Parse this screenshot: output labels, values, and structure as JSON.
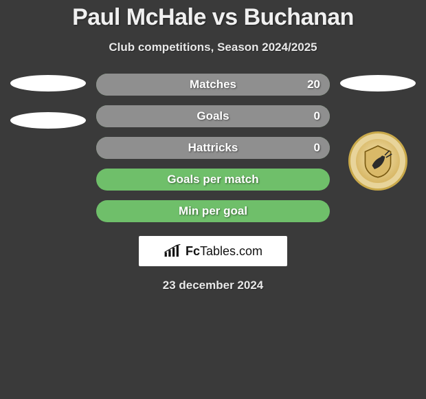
{
  "title": "Paul McHale vs Buchanan",
  "subtitle": "Club competitions, Season 2024/2025",
  "date": "23 december 2024",
  "watermark": {
    "brand_bold": "Fc",
    "brand_rest": "Tables.com"
  },
  "colors": {
    "row_left": "#6fbf6a",
    "row_right_fill": "#8f8f8f",
    "row_full_green": "#6fbf6a",
    "ellipse": "#ffffff",
    "badge_bg": "#e8d49a",
    "badge_border": "#c9a94a"
  },
  "stats": [
    {
      "label": "Matches",
      "right_value": "20",
      "right_fill_pct": 100,
      "show_right_value": true
    },
    {
      "label": "Goals",
      "right_value": "0",
      "right_fill_pct": 100,
      "show_right_value": true
    },
    {
      "label": "Hattricks",
      "right_value": "0",
      "right_fill_pct": 100,
      "show_right_value": true
    },
    {
      "label": "Goals per match",
      "right_value": "",
      "right_fill_pct": 0,
      "show_right_value": false
    },
    {
      "label": "Min per goal",
      "right_value": "",
      "right_fill_pct": 0,
      "show_right_value": false
    }
  ],
  "badge": {
    "name": "alloa-athletic-crest"
  }
}
